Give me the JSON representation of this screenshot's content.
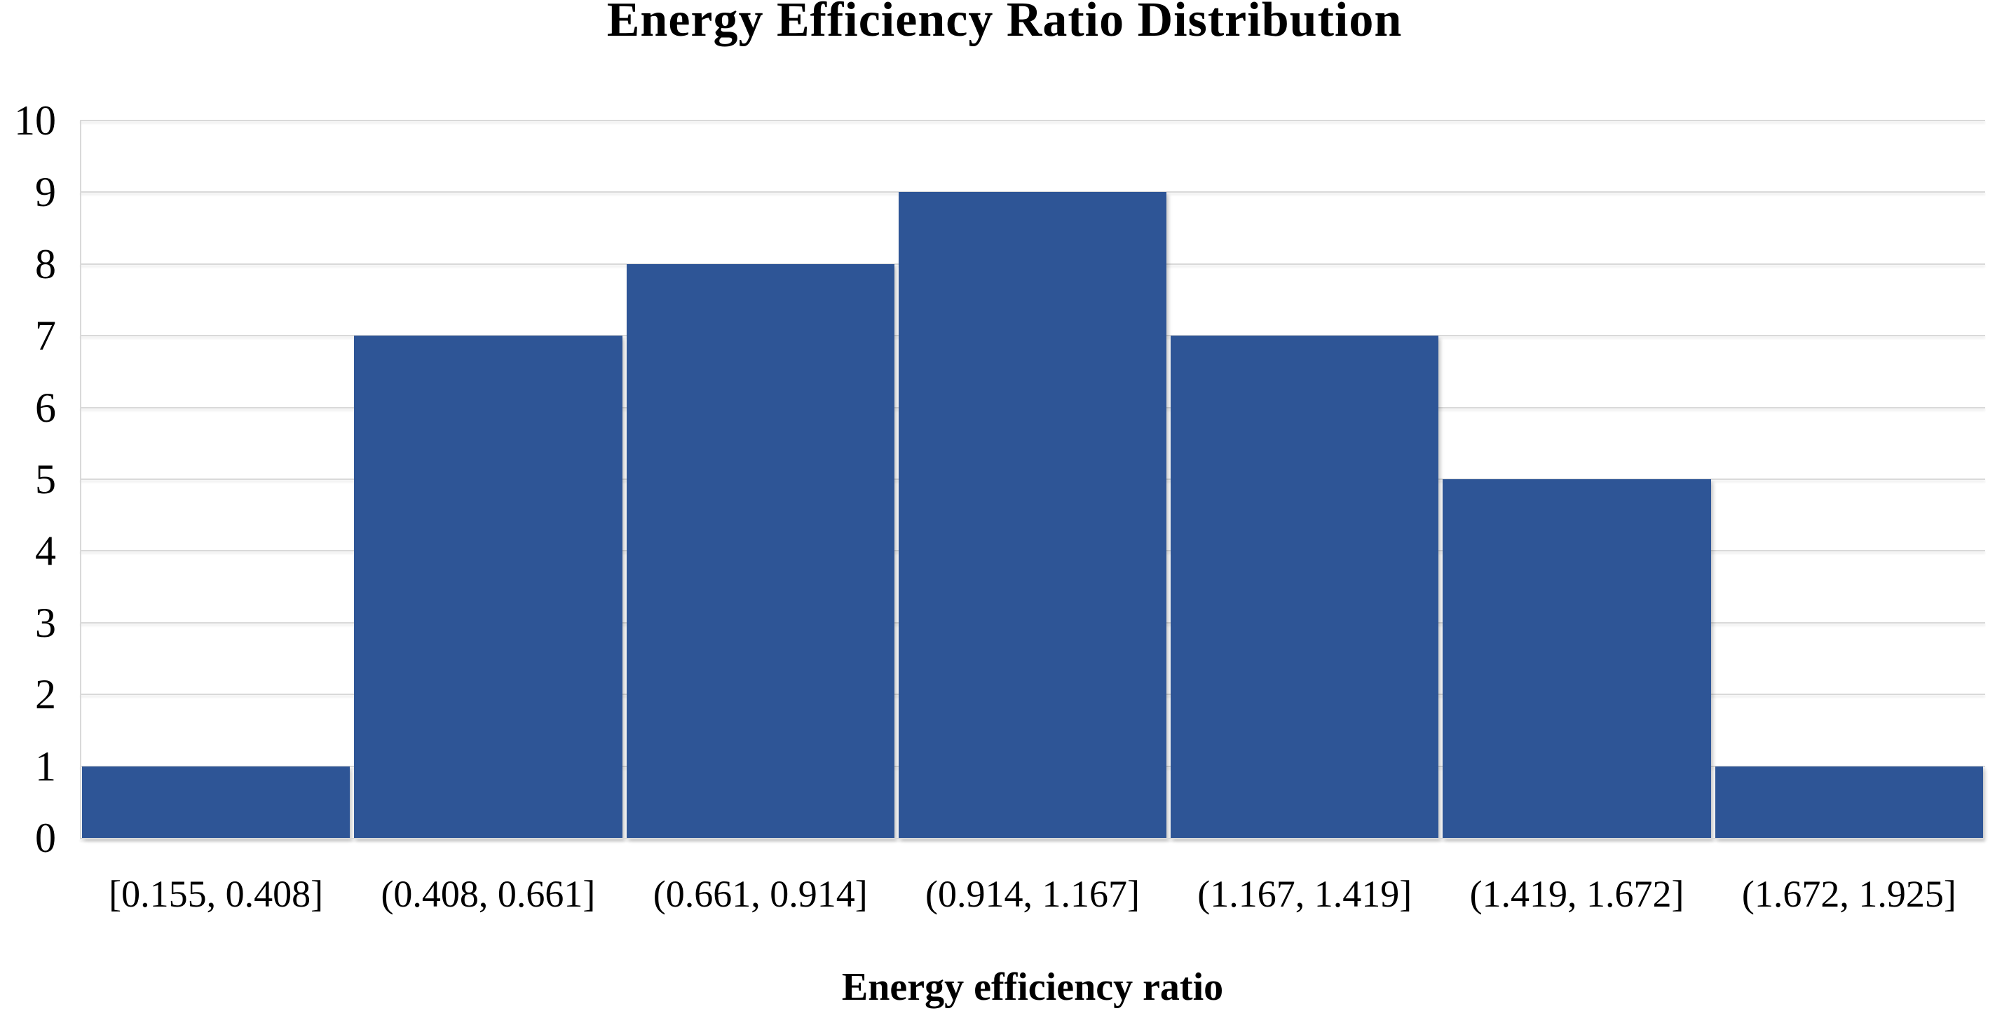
{
  "chart_data": {
    "type": "bar",
    "title": "Energy Efficiency Ratio Distribution",
    "xlabel": "Energy efficiency ratio",
    "ylabel": "",
    "categories": [
      "[0.155, 0.408]",
      "(0.408, 0.661]",
      "(0.661, 0.914]",
      "(0.914, 1.167]",
      "(1.167, 1.419]",
      "(1.419, 1.672]",
      "(1.672, 1.925]"
    ],
    "values": [
      1,
      7,
      8,
      9,
      7,
      5,
      1
    ],
    "ylim": [
      0,
      10
    ],
    "yticks": [
      0,
      1,
      2,
      3,
      4,
      5,
      6,
      7,
      8,
      9,
      10
    ],
    "grid": true,
    "legend_position": "none",
    "colors": {
      "bar": "#2E5596",
      "gridline": "#D9D9D9",
      "axis_line": "#D9D9D9",
      "text": "#000000",
      "background": "#FFFFFF"
    }
  }
}
